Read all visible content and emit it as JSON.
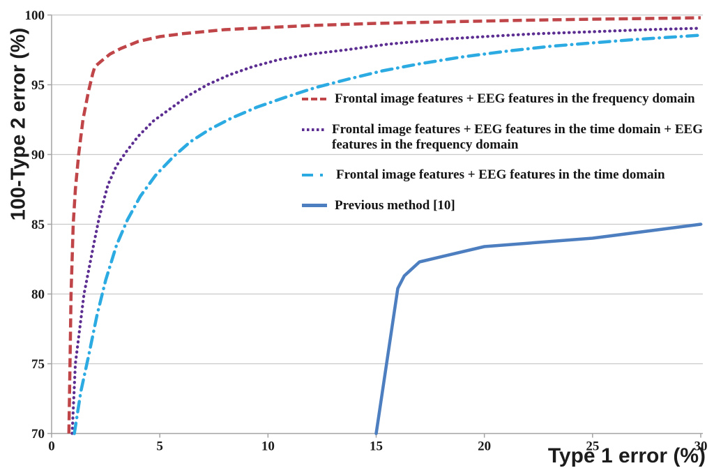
{
  "chart_data": {
    "type": "line",
    "title": "",
    "xlabel": "Type 1 error (%)",
    "ylabel": "100-Type 2 error (%)",
    "xlim": [
      0,
      30
    ],
    "ylim": [
      70,
      100
    ],
    "x_ticks": [
      0,
      5,
      10,
      15,
      20,
      25,
      30
    ],
    "y_ticks": [
      70,
      75,
      80,
      85,
      90,
      95,
      100
    ],
    "grid": "horizontal-only",
    "legend_position": "inside upper middle",
    "colors": {
      "grid": "#c9c9c9",
      "axis": "#a3a3a3",
      "tick_text": "#1a1a1a",
      "red": "#bf4549",
      "purple": "#5c2e91",
      "cyan": "#2caae2",
      "blue": "#4d7ebf"
    },
    "series": [
      {
        "name": "Frontal image features + EEG features in the frequency domain",
        "color": "#bf4549",
        "style": "dashed",
        "points": [
          [
            0.8,
            70
          ],
          [
            0.85,
            75
          ],
          [
            0.9,
            80
          ],
          [
            1.0,
            85
          ],
          [
            1.1,
            87.5
          ],
          [
            1.25,
            90
          ],
          [
            1.45,
            92.5
          ],
          [
            1.7,
            94.5
          ],
          [
            1.9,
            95.8
          ],
          [
            2.0,
            96.3
          ],
          [
            2.3,
            96.7
          ],
          [
            2.7,
            97.2
          ],
          [
            3.2,
            97.6
          ],
          [
            4,
            98.1
          ],
          [
            5,
            98.45
          ],
          [
            6,
            98.65
          ],
          [
            7,
            98.8
          ],
          [
            8,
            98.95
          ],
          [
            10,
            99.1
          ],
          [
            12,
            99.25
          ],
          [
            15,
            99.4
          ],
          [
            18,
            99.5
          ],
          [
            21,
            99.6
          ],
          [
            25,
            99.7
          ],
          [
            30,
            99.8
          ]
        ]
      },
      {
        "name": "Frontal image features + EEG features in the time domain + EEG\nfeatures in the frequency domain",
        "color": "#5c2e91",
        "style": "dotted",
        "points": [
          [
            0.95,
            70
          ],
          [
            1.1,
            75
          ],
          [
            1.5,
            80
          ],
          [
            1.9,
            83.2
          ],
          [
            2.2,
            85.5
          ],
          [
            2.6,
            87.8
          ],
          [
            3.0,
            89.2
          ],
          [
            3.45,
            90.2
          ],
          [
            4.0,
            91.3
          ],
          [
            4.7,
            92.4
          ],
          [
            5.5,
            93.3
          ],
          [
            6.3,
            94.2
          ],
          [
            7.2,
            95.0
          ],
          [
            8.2,
            95.7
          ],
          [
            9.3,
            96.3
          ],
          [
            10.5,
            96.8
          ],
          [
            12,
            97.2
          ],
          [
            13.6,
            97.5
          ],
          [
            15.5,
            97.9
          ],
          [
            17.9,
            98.25
          ],
          [
            20,
            98.45
          ],
          [
            22.3,
            98.65
          ],
          [
            25,
            98.8
          ],
          [
            27.5,
            98.95
          ],
          [
            30,
            99.05
          ]
        ]
      },
      {
        "name": "Frontal image features + EEG features in the time domain",
        "color": "#2caae2",
        "style": "dashdot",
        "points": [
          [
            1.05,
            70
          ],
          [
            1.35,
            73
          ],
          [
            1.7,
            75.5
          ],
          [
            2.1,
            78.5
          ],
          [
            2.5,
            81
          ],
          [
            3.0,
            83.5
          ],
          [
            3.5,
            85.3
          ],
          [
            4.1,
            87
          ],
          [
            4.8,
            88.5
          ],
          [
            5.6,
            89.8
          ],
          [
            6.4,
            90.9
          ],
          [
            7.3,
            91.8
          ],
          [
            8.3,
            92.6
          ],
          [
            9.5,
            93.4
          ],
          [
            10.8,
            94.1
          ],
          [
            12.2,
            94.8
          ],
          [
            13.7,
            95.4
          ],
          [
            15.3,
            96.0
          ],
          [
            17,
            96.5
          ],
          [
            19,
            97.0
          ],
          [
            21,
            97.4
          ],
          [
            23,
            97.75
          ],
          [
            25,
            98.0
          ],
          [
            27,
            98.25
          ],
          [
            28.5,
            98.4
          ],
          [
            30,
            98.55
          ]
        ]
      },
      {
        "name": "Previous method [10]",
        "color": "#4d7ebf",
        "style": "solid",
        "points": [
          [
            15,
            70
          ],
          [
            16,
            80.4
          ],
          [
            16.3,
            81.3
          ],
          [
            17,
            82.3
          ],
          [
            20,
            83.4
          ],
          [
            25,
            84.0
          ],
          [
            30,
            85.0
          ]
        ]
      }
    ]
  }
}
